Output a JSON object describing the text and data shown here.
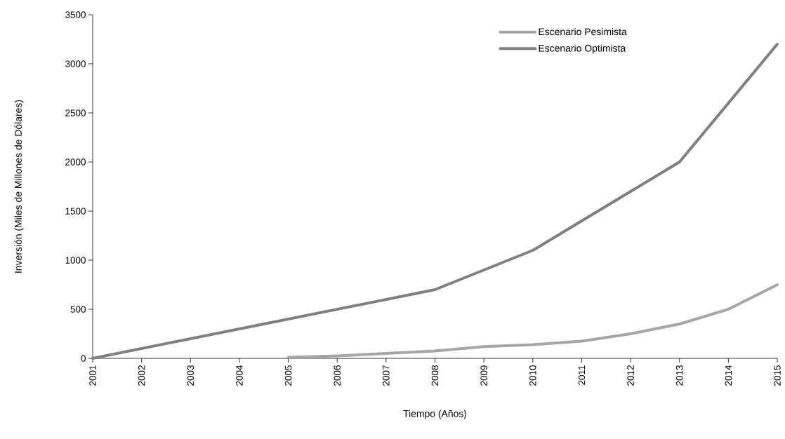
{
  "chart_data": {
    "type": "line",
    "xlabel": "Tiempo (Años)",
    "ylabel": "Inversión (Miles de Millones de Dólares)",
    "xlim": [
      2001,
      2015
    ],
    "xticks": [
      2001,
      2002,
      2003,
      2004,
      2005,
      2006,
      2007,
      2008,
      2009,
      2010,
      2011,
      2012,
      2013,
      2014,
      2015
    ],
    "ylim": [
      0,
      3500
    ],
    "yticks": [
      0,
      500,
      1000,
      1500,
      2000,
      2500,
      3000,
      3500
    ],
    "grid": false,
    "legend": "top right",
    "marker": "none",
    "line_style": "solid",
    "series": [
      {
        "name": "Escenario Pesimista",
        "color": "#a6a6a6",
        "x": [
          2005,
          2006,
          2007,
          2008,
          2009,
          2010,
          2011,
          2012,
          2013,
          2014,
          2015
        ],
        "values": [
          10,
          25,
          50,
          75,
          120,
          140,
          175,
          250,
          350,
          500,
          750
        ]
      },
      {
        "name": "Escenario Optimista",
        "color": "#7f7f7f",
        "x": [
          2001,
          2002,
          2003,
          2004,
          2005,
          2006,
          2007,
          2008,
          2009,
          2010,
          2011,
          2012,
          2013,
          2014,
          2015
        ],
        "values": [
          0,
          100,
          200,
          300,
          400,
          500,
          600,
          700,
          900,
          1100,
          1400,
          1700,
          2000,
          2600,
          3200
        ]
      }
    ]
  }
}
